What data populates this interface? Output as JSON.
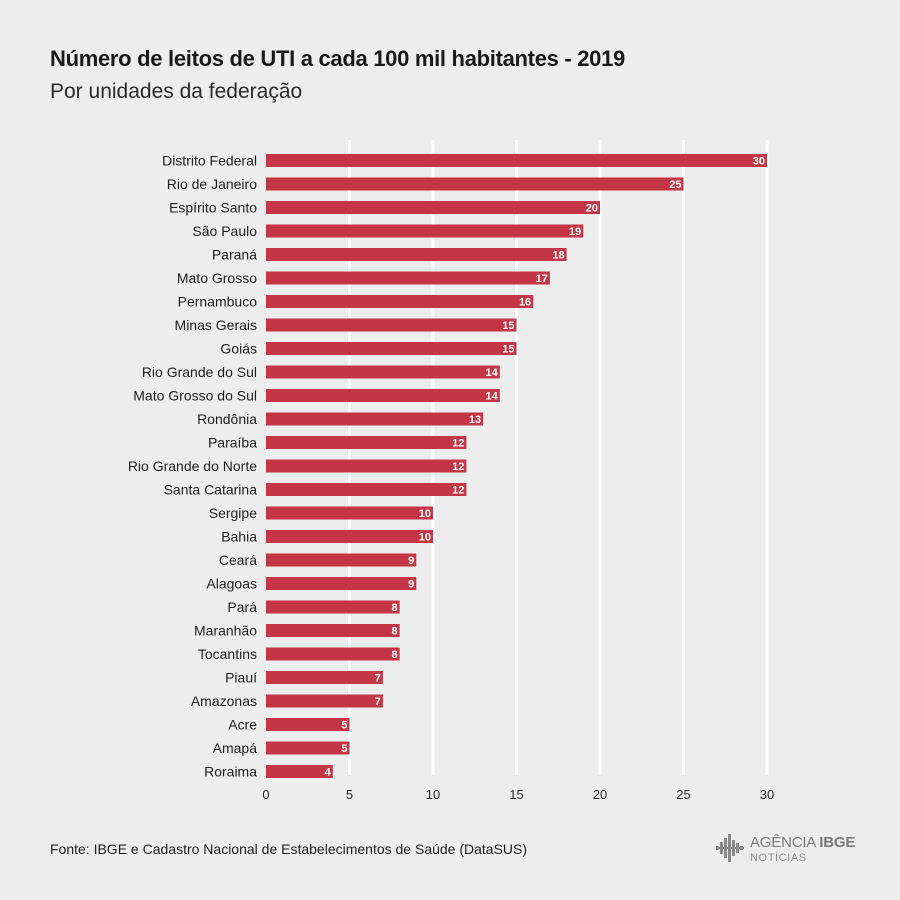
{
  "title": "Número de leitos de UTI a cada 100 mil habitantes - 2019",
  "subtitle": "Por unidades da federação",
  "source": "Fonte: IBGE e Cadastro Nacional de Estabelecimentos de Saúde (DataSUS)",
  "logo": {
    "line1_a": "AGÊNCIA",
    "line1_b": "IBGE",
    "line2": "NOTÍCIAS"
  },
  "colors": {
    "bar": "#c43545",
    "background": "#eeeded",
    "grid": "#ffffff",
    "bar_label": "#ffffff"
  },
  "chart_data": {
    "type": "bar",
    "orientation": "horizontal",
    "categories": [
      "Distrito Federal",
      "Rio de Janeiro",
      "Espírito Santo",
      "São Paulo",
      "Paraná",
      "Mato Grosso",
      "Pernambuco",
      "Minas Gerais",
      "Goiás",
      "Rio Grande do Sul",
      "Mato Grosso do Sul",
      "Rondônia",
      "Paraíba",
      "Rio Grande do Norte",
      "Santa Catarina",
      "Sergipe",
      "Bahia",
      "Ceará",
      "Alagoas",
      "Pará",
      "Maranhão",
      "Tocantins",
      "Piauí",
      "Amazonas",
      "Acre",
      "Amapá",
      "Roraima"
    ],
    "values": [
      30,
      25,
      20,
      19,
      18,
      17,
      16,
      15,
      15,
      14,
      14,
      13,
      12,
      12,
      12,
      10,
      10,
      9,
      9,
      8,
      8,
      8,
      7,
      7,
      5,
      5,
      4
    ],
    "xlim": [
      0,
      30
    ],
    "xticks": [
      0,
      5,
      10,
      15,
      20,
      25,
      30
    ],
    "grid": true,
    "data_labels": true
  }
}
